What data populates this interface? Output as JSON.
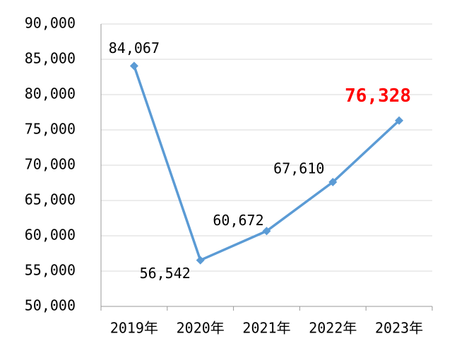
{
  "chart_data": {
    "type": "line",
    "categories": [
      "2019年",
      "2020年",
      "2021年",
      "2022年",
      "2023年"
    ],
    "series": [
      {
        "color": "#5b9bd5",
        "values": [
          84067,
          56542,
          60672,
          67610,
          76328
        ],
        "value_labels": [
          "84,067",
          "56,542",
          "60,672",
          "67,610",
          "76,328"
        ],
        "value_label_colors": [
          "#000000",
          "#000000",
          "#000000",
          "#000000",
          "#ff0000"
        ]
      }
    ],
    "ylim": [
      50000,
      90000
    ],
    "yticks": [
      {
        "value": 50000,
        "label": "50,000"
      },
      {
        "value": 55000,
        "label": "55,000"
      },
      {
        "value": 60000,
        "label": "60,000"
      },
      {
        "value": 65000,
        "label": "65,000"
      },
      {
        "value": 70000,
        "label": "70,000"
      },
      {
        "value": 75000,
        "label": "75,000"
      },
      {
        "value": 80000,
        "label": "80,000"
      },
      {
        "value": 85000,
        "label": "85,000"
      },
      {
        "value": 90000,
        "label": "90,000"
      }
    ],
    "grid": true
  }
}
